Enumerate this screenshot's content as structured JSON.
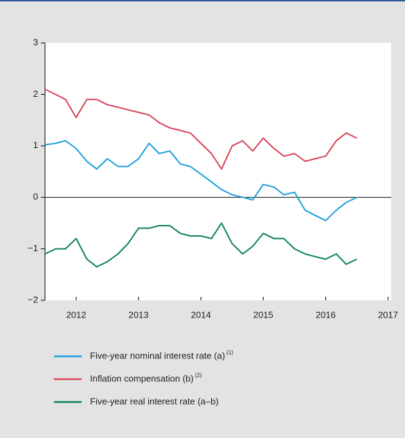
{
  "chart_data": {
    "type": "line",
    "x": [
      2011.5,
      2011.67,
      2011.83,
      2012,
      2012.17,
      2012.33,
      2012.5,
      2012.67,
      2012.83,
      2013,
      2013.17,
      2013.33,
      2013.5,
      2013.67,
      2013.83,
      2014,
      2014.17,
      2014.33,
      2014.5,
      2014.67,
      2014.83,
      2015,
      2015.17,
      2015.33,
      2015.5,
      2015.67,
      2015.83,
      2016,
      2016.17,
      2016.33,
      2016.5
    ],
    "series": [
      {
        "name": "Five-year nominal interest rate (a)",
        "note": "(1)",
        "color": "#1ba1dd",
        "values": [
          1.02,
          1.05,
          1.1,
          0.95,
          0.7,
          0.55,
          0.75,
          0.6,
          0.6,
          0.75,
          1.05,
          0.85,
          0.9,
          0.65,
          0.6,
          0.45,
          0.3,
          0.15,
          0.05,
          0.0,
          -0.05,
          0.25,
          0.2,
          0.05,
          0.1,
          -0.25,
          -0.35,
          -0.45,
          -0.25,
          -0.1,
          0.0
        ]
      },
      {
        "name": "Inflation compensation (b)",
        "note": "(2)",
        "color": "#d7465a",
        "values": [
          2.1,
          2.0,
          1.9,
          1.55,
          1.9,
          1.9,
          1.8,
          1.75,
          1.7,
          1.65,
          1.6,
          1.45,
          1.35,
          1.3,
          1.25,
          1.05,
          0.85,
          0.55,
          1.0,
          1.1,
          0.9,
          1.15,
          0.95,
          0.8,
          0.85,
          0.7,
          0.75,
          0.8,
          1.1,
          1.25,
          1.15
        ]
      },
      {
        "name": "Five-year real interest rate (a–b)",
        "color": "#0e8160",
        "values": [
          -1.1,
          -1.0,
          -1.0,
          -0.8,
          -1.2,
          -1.35,
          -1.25,
          -1.1,
          -0.9,
          -0.6,
          -0.6,
          -0.55,
          -0.55,
          -0.7,
          -0.75,
          -0.75,
          -0.8,
          -0.5,
          -0.9,
          -1.1,
          -0.95,
          -0.7,
          -0.8,
          -0.8,
          -1.0,
          -1.1,
          -1.15,
          -1.2,
          -1.1,
          -1.3,
          -1.2
        ]
      }
    ],
    "xlim": [
      2011.5,
      2017.05
    ],
    "xticks": [
      2012,
      2013,
      2014,
      2015,
      2016,
      2017
    ],
    "ylim": [
      -2,
      3
    ],
    "yticks": [
      {
        "value": -2,
        "label": "−2"
      },
      {
        "value": -1,
        "label": "−1"
      },
      0,
      1,
      2,
      3
    ]
  }
}
